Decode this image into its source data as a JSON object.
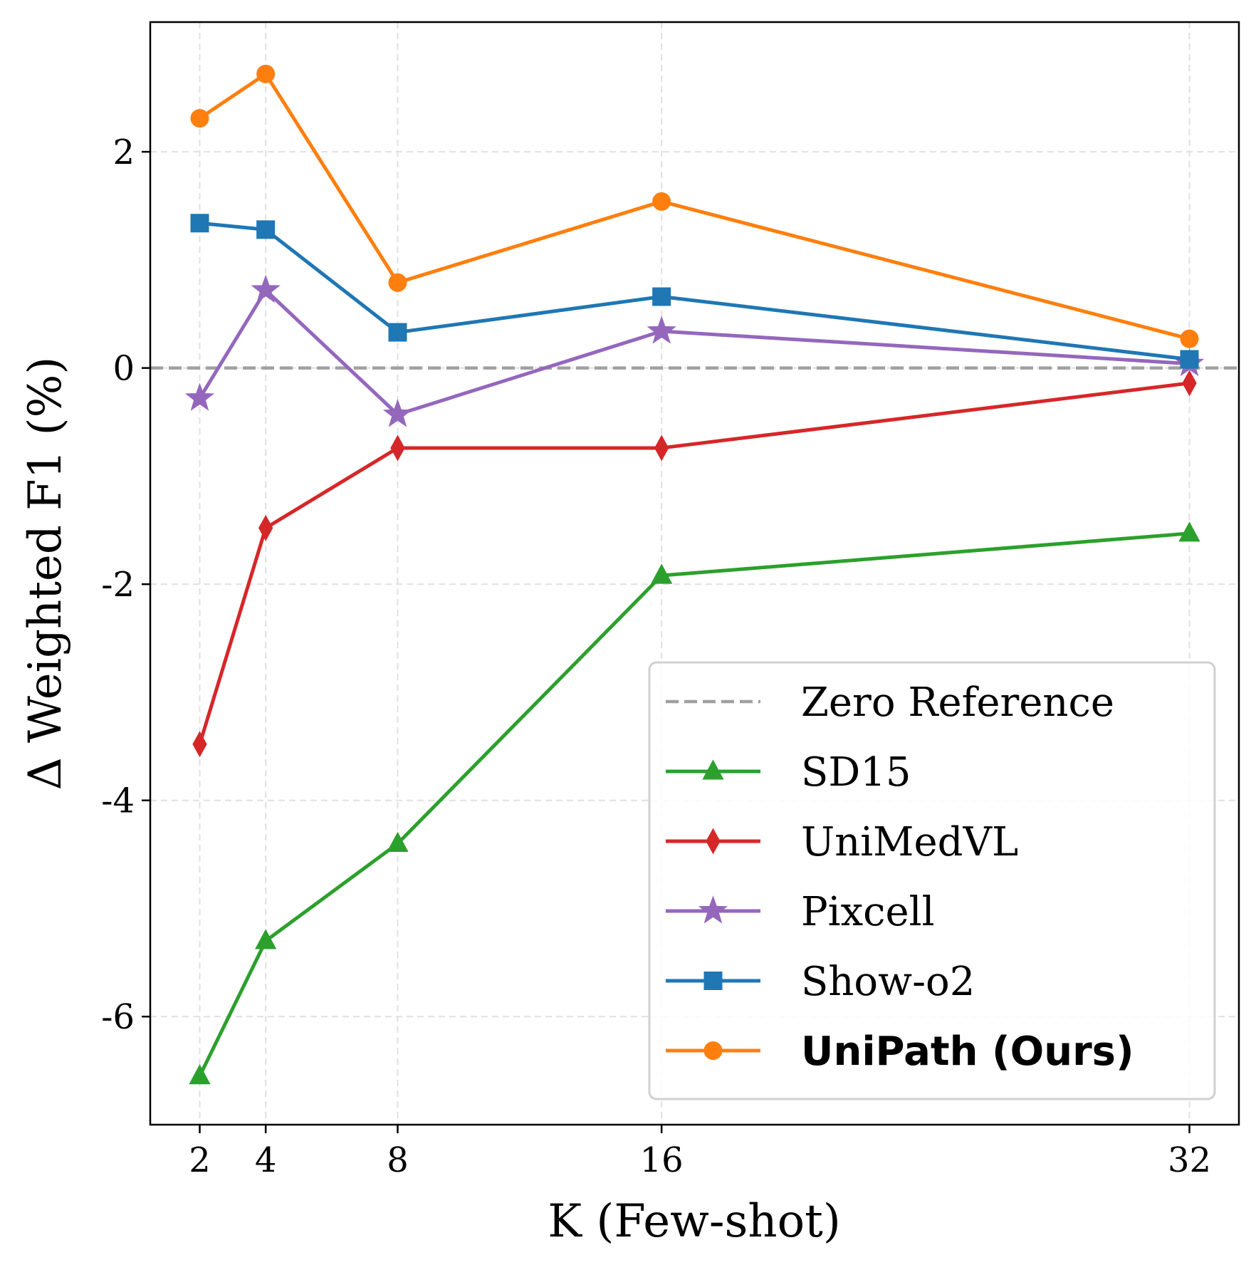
{
  "chart_data": {
    "type": "line",
    "xlabel": "K (Few-shot)",
    "ylabel": "Δ Weighted F1 (%)",
    "x": [
      2,
      4,
      8,
      16,
      32
    ],
    "xticks": [
      2,
      4,
      8,
      16,
      32
    ],
    "xlim": [
      0.5,
      33.5
    ],
    "yticks": [
      2,
      0,
      -2,
      -4,
      -6
    ],
    "ytick_labels": [
      "2",
      "0",
      "-2",
      "-4",
      "-6"
    ],
    "ylim": [
      -7.0,
      3.2
    ],
    "grid": true,
    "legend_position": "lower-right",
    "reference": {
      "name": "Zero Reference",
      "value": 0,
      "color": "#a0a0a0",
      "style": "dashed"
    },
    "series": [
      {
        "name": "SD15",
        "color": "#2ca02c",
        "marker": "triangle",
        "bold": false,
        "values": [
          -6.55,
          -5.3,
          -4.4,
          -1.92,
          -1.53
        ]
      },
      {
        "name": "UniMedVL",
        "color": "#d62728",
        "marker": "diamond",
        "bold": false,
        "values": [
          -3.48,
          -1.48,
          -0.74,
          -0.74,
          -0.14
        ]
      },
      {
        "name": "Pixcell",
        "color": "#9467bd",
        "marker": "star",
        "bold": false,
        "values": [
          -0.28,
          0.72,
          -0.43,
          0.34,
          0.04
        ]
      },
      {
        "name": "Show-o2",
        "color": "#1f77b4",
        "marker": "square",
        "bold": false,
        "values": [
          1.34,
          1.28,
          0.33,
          0.66,
          0.08
        ]
      },
      {
        "name": "UniPath (Ours)",
        "color": "#ff7f0e",
        "marker": "circle",
        "bold": true,
        "values": [
          2.31,
          2.72,
          0.79,
          1.54,
          0.27
        ]
      }
    ]
  }
}
